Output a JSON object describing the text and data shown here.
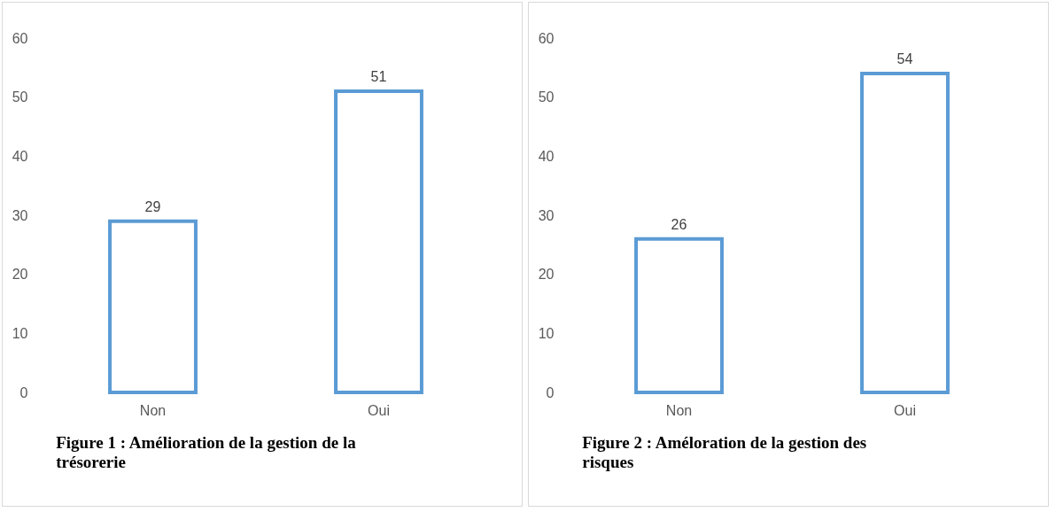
{
  "chart_data": [
    {
      "type": "bar",
      "title": "Figure 1 : Amélioration de la gestion de la trésorerie",
      "categories": [
        "Non",
        "Oui"
      ],
      "values": [
        29,
        51
      ],
      "color": "#5b9bd5",
      "ylim": [
        0,
        60
      ],
      "yticks": [
        0,
        10,
        20,
        30,
        40,
        50,
        60
      ],
      "grid": false,
      "data_labels": true
    },
    {
      "type": "bar",
      "title": "Figure 2 : Améloration de la gestion des risques",
      "categories": [
        "Non",
        "Oui"
      ],
      "values": [
        26,
        54
      ],
      "color": "#5b9bd5",
      "ylim": [
        0,
        60
      ],
      "yticks": [
        0,
        10,
        20,
        30,
        40,
        50,
        60
      ],
      "grid": false,
      "data_labels": true
    }
  ]
}
